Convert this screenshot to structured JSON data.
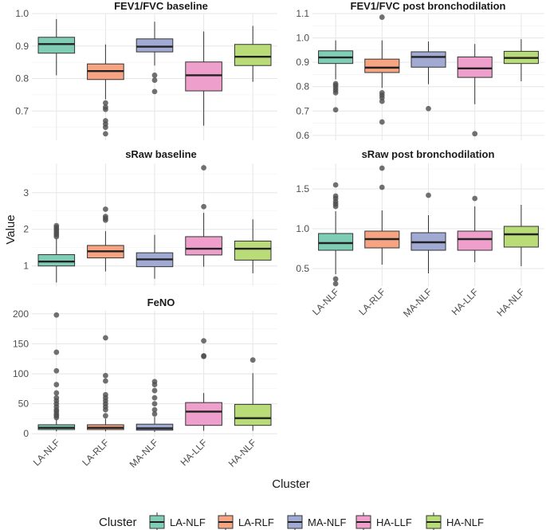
{
  "chart_data": [
    {
      "type": "boxplot",
      "title": "FEV1/FVC baseline",
      "ylim": [
        0.61,
        1.0
      ],
      "yticks": [
        0.7,
        0.8,
        0.9,
        1.0
      ],
      "ytick_labels": [
        "0.7",
        "0.8",
        "0.9",
        "1.0"
      ],
      "xtick_labels": [],
      "boxes": [
        {
          "cluster": "LA-NLF",
          "whisker_low": 0.81,
          "q1": 0.878,
          "median": 0.906,
          "q3": 0.927,
          "whisker_high": 0.983,
          "outliers": []
        },
        {
          "cluster": "LA-RLF",
          "whisker_low": 0.736,
          "q1": 0.797,
          "median": 0.823,
          "q3": 0.845,
          "whisker_high": 0.905,
          "outliers": [
            0.725,
            0.712,
            0.705,
            0.67,
            0.66,
            0.65,
            0.63
          ]
        },
        {
          "cluster": "MA-NLF",
          "whisker_low": 0.84,
          "q1": 0.882,
          "median": 0.898,
          "q3": 0.922,
          "whisker_high": 0.975,
          "outliers": [
            0.81,
            0.795,
            0.76
          ]
        },
        {
          "cluster": "HA-LLF",
          "whisker_low": 0.655,
          "q1": 0.762,
          "median": 0.81,
          "q3": 0.851,
          "whisker_high": 0.945,
          "outliers": []
        },
        {
          "cluster": "HA-NLF",
          "whisker_low": 0.79,
          "q1": 0.84,
          "median": 0.867,
          "q3": 0.905,
          "whisker_high": 0.962,
          "outliers": []
        }
      ]
    },
    {
      "type": "boxplot",
      "title": "FEV1/FVC post bronchodilation",
      "ylim": [
        0.58,
        1.1
      ],
      "yticks": [
        0.6,
        0.7,
        0.8,
        0.9,
        1.0,
        1.1
      ],
      "ytick_labels": [
        "0.6",
        "0.7",
        "0.8",
        "0.9",
        "1.0",
        "1.1"
      ],
      "xtick_labels": [],
      "boxes": [
        {
          "cluster": "LA-NLF",
          "whisker_low": 0.83,
          "q1": 0.895,
          "median": 0.92,
          "q3": 0.947,
          "whisker_high": 0.99,
          "outliers": [
            0.812,
            0.805,
            0.795,
            0.785,
            0.775,
            0.705
          ]
        },
        {
          "cluster": "LA-RLF",
          "whisker_low": 0.795,
          "q1": 0.858,
          "median": 0.878,
          "q3": 0.913,
          "whisker_high": 0.99,
          "outliers": [
            0.775,
            0.765,
            0.755,
            0.74,
            0.655,
            1.085
          ]
        },
        {
          "cluster": "MA-NLF",
          "whisker_low": 0.81,
          "q1": 0.88,
          "median": 0.922,
          "q3": 0.943,
          "whisker_high": 0.985,
          "outliers": [
            0.71
          ]
        },
        {
          "cluster": "HA-LLF",
          "whisker_low": 0.728,
          "q1": 0.838,
          "median": 0.875,
          "q3": 0.922,
          "whisker_high": 0.975,
          "outliers": [
            0.607
          ]
        },
        {
          "cluster": "HA-NLF",
          "whisker_low": 0.822,
          "q1": 0.895,
          "median": 0.918,
          "q3": 0.945,
          "whisker_high": 0.995,
          "outliers": []
        }
      ]
    },
    {
      "type": "boxplot",
      "title": "sRaw baseline",
      "ylim": [
        0.45,
        3.8
      ],
      "yticks": [
        1,
        2,
        3
      ],
      "ytick_labels": [
        "1",
        "2",
        "3"
      ],
      "xtick_labels": [],
      "boxes": [
        {
          "cluster": "LA-NLF",
          "whisker_low": 0.55,
          "q1": 1.0,
          "median": 1.12,
          "q3": 1.31,
          "whisker_high": 1.75,
          "outliers": [
            1.8,
            1.85,
            1.9,
            1.95,
            2.0,
            2.05,
            2.1
          ]
        },
        {
          "cluster": "LA-RLF",
          "whisker_low": 0.85,
          "q1": 1.22,
          "median": 1.4,
          "q3": 1.56,
          "whisker_high": 1.95,
          "outliers": [
            2.25,
            2.3,
            2.35,
            2.55
          ]
        },
        {
          "cluster": "MA-NLF",
          "whisker_low": 0.65,
          "q1": 0.98,
          "median": 1.18,
          "q3": 1.36,
          "whisker_high": 1.85,
          "outliers": []
        },
        {
          "cluster": "HA-LLF",
          "whisker_low": 0.98,
          "q1": 1.3,
          "median": 1.47,
          "q3": 1.8,
          "whisker_high": 2.45,
          "outliers": [
            2.62,
            3.68
          ]
        },
        {
          "cluster": "HA-NLF",
          "whisker_low": 0.8,
          "q1": 1.16,
          "median": 1.47,
          "q3": 1.68,
          "whisker_high": 2.27,
          "outliers": []
        }
      ]
    },
    {
      "type": "boxplot",
      "title": "sRaw post bronchodilation",
      "ylim": [
        0.28,
        1.82
      ],
      "yticks": [
        0.5,
        1.0,
        1.5
      ],
      "ytick_labels": [
        "0.5",
        "1.0",
        "1.5"
      ],
      "xtick_labels": [
        "LA-NLF",
        "LA-RLF",
        "MA-NLF",
        "HA-LLF",
        "HA-NLF"
      ],
      "boxes": [
        {
          "cluster": "LA-NLF",
          "whisker_low": 0.43,
          "q1": 0.73,
          "median": 0.82,
          "q3": 0.94,
          "whisker_high": 1.22,
          "outliers": [
            1.28,
            1.31,
            1.34,
            1.38,
            1.41,
            1.55,
            0.37,
            0.31
          ]
        },
        {
          "cluster": "LA-RLF",
          "whisker_low": 0.55,
          "q1": 0.76,
          "median": 0.87,
          "q3": 0.97,
          "whisker_high": 1.23,
          "outliers": [
            1.52,
            1.76
          ]
        },
        {
          "cluster": "MA-NLF",
          "whisker_low": 0.44,
          "q1": 0.73,
          "median": 0.83,
          "q3": 0.95,
          "whisker_high": 1.17,
          "outliers": [
            1.42
          ]
        },
        {
          "cluster": "HA-LLF",
          "whisker_low": 0.58,
          "q1": 0.73,
          "median": 0.87,
          "q3": 0.97,
          "whisker_high": 1.28,
          "outliers": [
            1.38
          ]
        },
        {
          "cluster": "HA-NLF",
          "whisker_low": 0.53,
          "q1": 0.77,
          "median": 0.93,
          "q3": 1.03,
          "whisker_high": 1.3,
          "outliers": []
        }
      ]
    },
    {
      "type": "boxplot",
      "title": "FeNO",
      "ylim": [
        -5,
        205
      ],
      "yticks": [
        0,
        50,
        100,
        150,
        200
      ],
      "ytick_labels": [
        "0",
        "50",
        "100",
        "150",
        "200"
      ],
      "xtick_labels": [
        "LA-NLF",
        "LA-RLF",
        "MA-NLF",
        "HA-LLF",
        "HA-NLF"
      ],
      "boxes": [
        {
          "cluster": "LA-NLF",
          "whisker_low": 4,
          "q1": 7,
          "median": 10,
          "q3": 15,
          "whisker_high": 24,
          "outliers": [
            27,
            30,
            33,
            37,
            40,
            45,
            50,
            55,
            60,
            68,
            82,
            105,
            136,
            198
          ]
        },
        {
          "cluster": "LA-RLF",
          "whisker_low": 4,
          "q1": 7,
          "median": 10,
          "q3": 15,
          "whisker_high": 25,
          "outliers": [
            30,
            40,
            45,
            50,
            55,
            60,
            65,
            88,
            97,
            160
          ]
        },
        {
          "cluster": "MA-NLF",
          "whisker_low": 3,
          "q1": 6,
          "median": 9,
          "q3": 16,
          "whisker_high": 28,
          "outliers": [
            33,
            40,
            50,
            60,
            72,
            82,
            87
          ]
        },
        {
          "cluster": "HA-LLF",
          "whisker_low": 5,
          "q1": 14,
          "median": 37,
          "q3": 52,
          "whisker_high": 68,
          "outliers": [
            129,
            130,
            155
          ]
        },
        {
          "cluster": "HA-NLF",
          "whisker_low": 5,
          "q1": 14,
          "median": 26,
          "q3": 49,
          "whisker_high": 101,
          "outliers": [
            123
          ]
        }
      ]
    }
  ],
  "axes": {
    "xlabel": "Cluster",
    "ylabel": "Value"
  },
  "legend": {
    "title": "Cluster",
    "position": "bottom",
    "items": [
      {
        "label": "LA-NLF",
        "color": "#7fcdb4"
      },
      {
        "label": "LA-RLF",
        "color": "#f7a482"
      },
      {
        "label": "MA-NLF",
        "color": "#a0aad2"
      },
      {
        "label": "HA-LLF",
        "color": "#ee9fcb"
      },
      {
        "label": "HA-NLF",
        "color": "#b9db78"
      }
    ]
  },
  "style": {
    "grid": true,
    "background": "#ffffff",
    "outlier_color": "#4d4d4d"
  }
}
